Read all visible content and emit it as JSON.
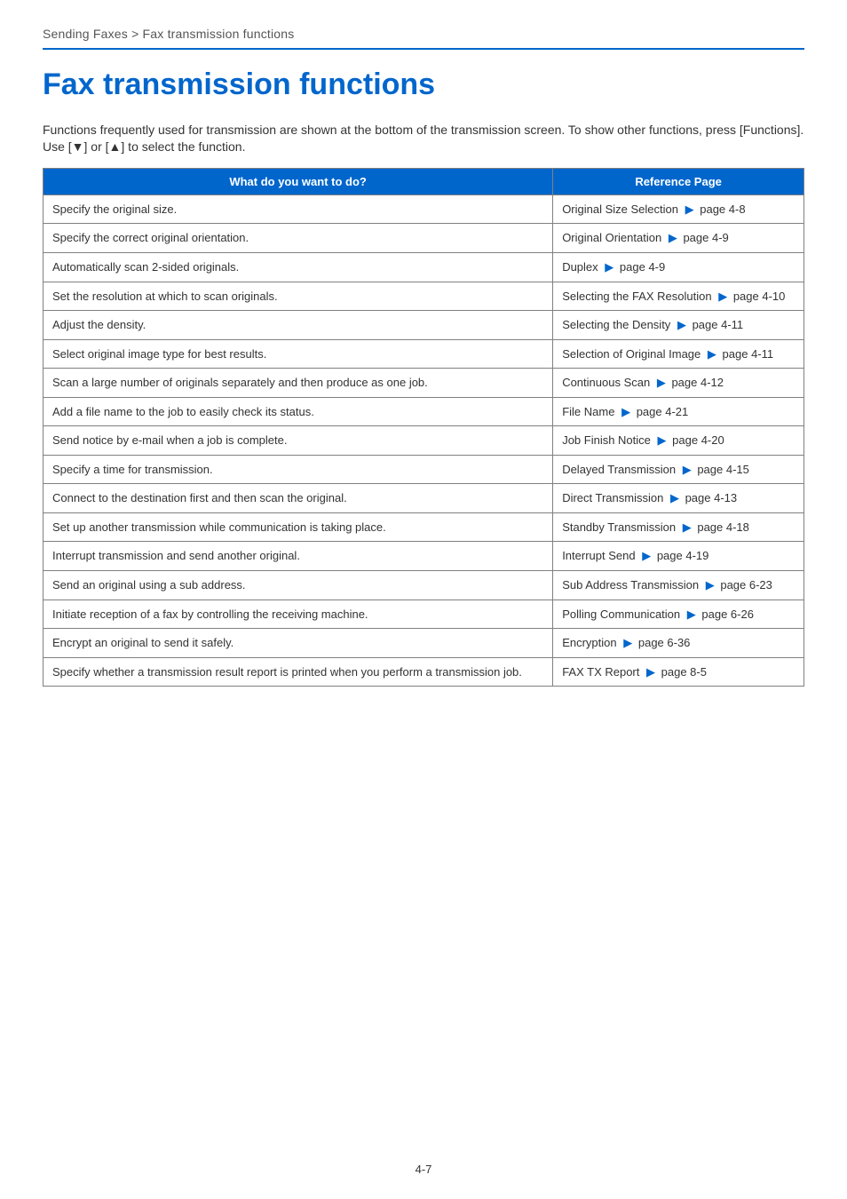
{
  "colors": {
    "rule": "#0066cc",
    "heading": "#0066cc",
    "th_bg": "#0066cc",
    "th_fg": "#ffffff",
    "border": "#808080",
    "arrow": "#0066cc",
    "text": "#333333"
  },
  "breadcrumb": "Sending Faxes > Fax transmission functions",
  "title": "Fax transmission functions",
  "intro": "Functions frequently used for transmission are shown at the bottom of the transmission screen. To show other functions, press [Functions]. Use [▼] or [▲] to select the function.",
  "table": {
    "col_widths": [
      "67%",
      "33%"
    ],
    "headers": [
      "What do you want to do?",
      "Reference Page"
    ],
    "rows": [
      {
        "what": "Specify the original size.",
        "ref_label": "Original Size Selection",
        "ref_page": "page 4-8"
      },
      {
        "what": "Specify the correct original orientation.",
        "ref_label": "Original Orientation",
        "ref_page": "page 4-9"
      },
      {
        "what": "Automatically scan 2-sided originals.",
        "ref_label": "Duplex",
        "ref_page": "page 4-9"
      },
      {
        "what": "Set the resolution at which to scan originals.",
        "ref_label": "Selecting the FAX Resolution",
        "ref_page": "page 4-10"
      },
      {
        "what": "Adjust the density.",
        "ref_label": "Selecting the Density",
        "ref_page": "page 4-11"
      },
      {
        "what": "Select original image type for best results.",
        "ref_label": "Selection of Original Image",
        "ref_page": "page 4-11"
      },
      {
        "what": "Scan a large number of originals separately and then produce as one job.",
        "ref_label": "Continuous Scan",
        "ref_page": "page 4-12"
      },
      {
        "what": "Add a file name to the job to easily check its status.",
        "ref_label": "File Name",
        "ref_page": "page 4-21"
      },
      {
        "what": "Send notice by e-mail when a job is complete.",
        "ref_label": "Job Finish Notice",
        "ref_page": "page 4-20"
      },
      {
        "what": "Specify a time for transmission.",
        "ref_label": "Delayed Transmission",
        "ref_page": "page 4-15"
      },
      {
        "what": "Connect to the destination first and then scan the original.",
        "ref_label": "Direct Transmission",
        "ref_page": "page 4-13"
      },
      {
        "what": "Set up another transmission while communication is taking place.",
        "ref_label": "Standby Transmission",
        "ref_page": "page 4-18"
      },
      {
        "what": "Interrupt transmission and send another original.",
        "ref_label": "Interrupt Send",
        "ref_page": "page 4-19"
      },
      {
        "what": "Send an original using a sub address.",
        "ref_label": "Sub Address Transmission",
        "ref_page": "page 6-23"
      },
      {
        "what": "Initiate reception of a fax by controlling the receiving machine.",
        "ref_label": "Polling Communication",
        "ref_page": "page 6-26"
      },
      {
        "what": "Encrypt an original to send it safely.",
        "ref_label": "Encryption",
        "ref_page": "page 6-36"
      },
      {
        "what": "Specify whether a transmission result report is printed when you perform a transmission job.",
        "ref_label": "FAX TX Report",
        "ref_page": "page 8-5"
      }
    ]
  },
  "arrow_glyph": "▶",
  "page_number": "4-7"
}
